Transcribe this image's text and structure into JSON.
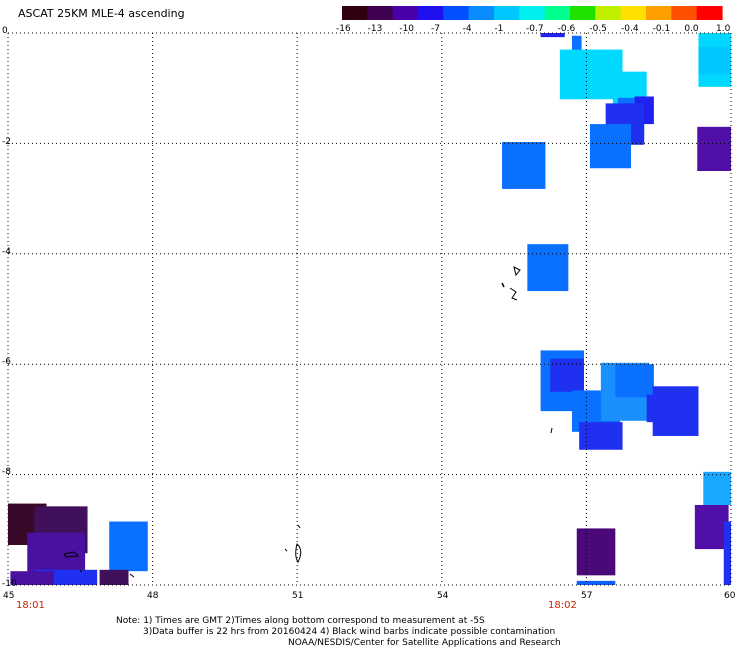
{
  "title": "ASCAT 25KM MLE-4 ascending",
  "colorbar": {
    "ticks": [
      "-16",
      "-13",
      "-10",
      "-7",
      "-4",
      "-1",
      "-0.7",
      "-0.6",
      "-0.5",
      "-0.4",
      "-0.1",
      "0.0",
      "1.0"
    ],
    "colors": [
      "#300010",
      "#400050",
      "#4a00a8",
      "#2010f0",
      "#0050ff",
      "#0a8cff",
      "#00c8ff",
      "#00f0f0",
      "#00ff90",
      "#20e000",
      "#c0f000",
      "#ffe000",
      "#ffa000",
      "#ff5000",
      "#ff0000"
    ]
  },
  "map": {
    "lat_labels": [
      "0",
      "-2",
      "-4",
      "-6",
      "-8",
      "-10"
    ],
    "lon_labels": [
      "45",
      "48",
      "51",
      "54",
      "57",
      "60"
    ],
    "time_labels": [
      "18:01",
      "18:02"
    ]
  },
  "chart_data": {
    "type": "heatmap",
    "title": "ASCAT 25KM MLE-4 ascending",
    "xlabel": "",
    "ylabel": "",
    "xlim": [
      45,
      60
    ],
    "ylim": [
      -10,
      0
    ],
    "scale_ticks": [
      -16,
      -13,
      -10,
      -7,
      -4,
      -1,
      -0.7,
      -0.6,
      -0.5,
      -0.4,
      -0.1,
      0.0,
      1.0
    ],
    "cells": [
      {
        "lon": 55.7,
        "lat": -2.4,
        "w": 0.9,
        "h": 0.85,
        "color": "#0a70ff"
      },
      {
        "lon": 56.2,
        "lat": -4.25,
        "w": 0.85,
        "h": 0.85,
        "color": "#0a70ff"
      },
      {
        "lon": 56.3,
        "lat": 0.0,
        "w": 0.5,
        "h": 0.15,
        "color": "#2020f0"
      },
      {
        "lon": 56.8,
        "lat": -0.3,
        "w": 0.2,
        "h": 0.5,
        "color": "#0a70ff"
      },
      {
        "lon": 57.1,
        "lat": -0.75,
        "w": 1.3,
        "h": 0.9,
        "color": "#00d8ff"
      },
      {
        "lon": 57.9,
        "lat": -1.1,
        "w": 0.7,
        "h": 0.8,
        "color": "#00d8ff"
      },
      {
        "lon": 57.9,
        "lat": -1.35,
        "w": 0.5,
        "h": 0.35,
        "color": "#0a70ff"
      },
      {
        "lon": 58.2,
        "lat": -1.4,
        "w": 0.4,
        "h": 0.5,
        "color": "#2020f0"
      },
      {
        "lon": 57.8,
        "lat": -1.65,
        "w": 0.8,
        "h": 0.75,
        "color": "#2030f0"
      },
      {
        "lon": 57.5,
        "lat": -2.05,
        "w": 0.85,
        "h": 0.8,
        "color": "#0a70ff"
      },
      {
        "lon": 59.7,
        "lat": -0.3,
        "w": 0.75,
        "h": 1.35,
        "color": "#00d8ff"
      },
      {
        "lon": 59.7,
        "lat": -0.5,
        "w": 0.75,
        "h": 0.5,
        "color": "#00c8ff"
      },
      {
        "lon": 59.7,
        "lat": -2.1,
        "w": 0.8,
        "h": 0.8,
        "color": "#5010a8"
      },
      {
        "lon": 56.5,
        "lat": -6.3,
        "w": 0.9,
        "h": 1.1,
        "color": "#0a70ff"
      },
      {
        "lon": 56.6,
        "lat": -6.2,
        "w": 0.7,
        "h": 0.6,
        "color": "#2030f0"
      },
      {
        "lon": 57.2,
        "lat": -6.85,
        "w": 1.0,
        "h": 0.75,
        "color": "#0a70ff"
      },
      {
        "lon": 57.3,
        "lat": -7.3,
        "w": 0.9,
        "h": 0.5,
        "color": "#2030f0"
      },
      {
        "lon": 57.8,
        "lat": -6.5,
        "w": 1.0,
        "h": 1.05,
        "color": "#1a90ff"
      },
      {
        "lon": 58.0,
        "lat": -6.3,
        "w": 0.8,
        "h": 0.6,
        "color": "#0a70ff"
      },
      {
        "lon": 58.5,
        "lat": -6.8,
        "w": 0.5,
        "h": 0.5,
        "color": "#2030f0"
      },
      {
        "lon": 58.85,
        "lat": -6.85,
        "w": 0.95,
        "h": 0.9,
        "color": "#2030f0"
      },
      {
        "lon": 59.75,
        "lat": -8.25,
        "w": 0.65,
        "h": 0.6,
        "color": "#1aa8ff"
      },
      {
        "lon": 59.6,
        "lat": -8.95,
        "w": 0.7,
        "h": 0.8,
        "color": "#5010a8"
      },
      {
        "lon": 60.0,
        "lat": -9.6,
        "w": 0.3,
        "h": 1.5,
        "color": "#2030f0"
      },
      {
        "lon": 57.2,
        "lat": -9.4,
        "w": 0.8,
        "h": 0.85,
        "color": "#4a0878"
      },
      {
        "lon": 57.2,
        "lat": -10.0,
        "w": 0.8,
        "h": 0.15,
        "color": "#0a60ff"
      },
      {
        "lon": 45.4,
        "lat": -8.9,
        "w": 0.8,
        "h": 0.75,
        "color": "#3a0828"
      },
      {
        "lon": 46.1,
        "lat": -9.0,
        "w": 1.1,
        "h": 0.85,
        "color": "#40105a"
      },
      {
        "lon": 46.0,
        "lat": -9.45,
        "w": 1.2,
        "h": 0.8,
        "color": "#4a10a0"
      },
      {
        "lon": 47.5,
        "lat": -9.3,
        "w": 0.8,
        "h": 0.9,
        "color": "#0a70ff"
      },
      {
        "lon": 46.2,
        "lat": -9.9,
        "w": 1.3,
        "h": 0.35,
        "color": "#2030f0"
      },
      {
        "lon": 45.5,
        "lat": -9.9,
        "w": 0.9,
        "h": 0.3,
        "color": "#4a10a0"
      },
      {
        "lon": 47.2,
        "lat": -9.9,
        "w": 0.6,
        "h": 0.35,
        "color": "#40105a"
      }
    ]
  },
  "notes": {
    "line1": "Note: 1) Times are GMT 2)Times along bottom correspond to measurement at -5S",
    "line2": "3)Data buffer is 22 hrs from 20160424 4) Black wind barbs indicate possible contamination",
    "line3": "NOAA/NESDIS/Center for Satellite Applications and Research"
  }
}
